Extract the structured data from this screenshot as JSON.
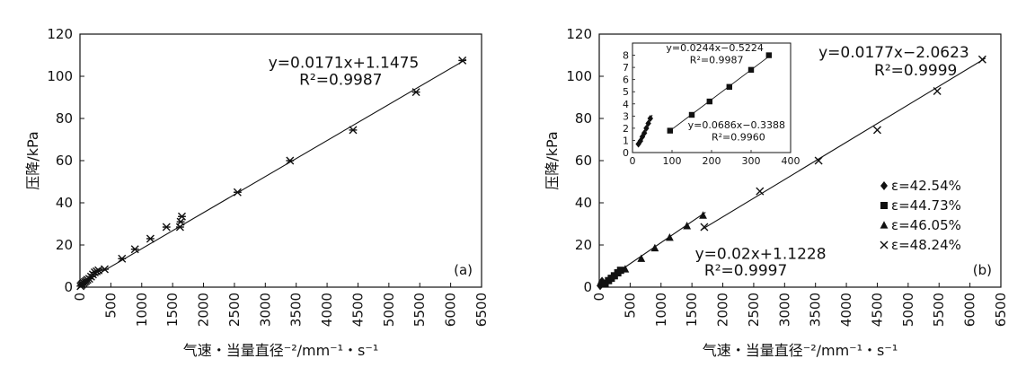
{
  "chart_data": [
    {
      "type": "scatter",
      "panel_label": "(a)",
      "xlabel": "气速・当量直径⁻²/mm⁻¹・s⁻¹",
      "ylabel": "压降/kPa",
      "xlim": [
        0,
        6500
      ],
      "ylim": [
        0,
        120
      ],
      "xticks": [
        0,
        500,
        1000,
        1500,
        2000,
        2500,
        3000,
        3500,
        4000,
        4500,
        5000,
        5500,
        6000,
        6500
      ],
      "yticks": [
        0,
        20,
        40,
        60,
        80,
        100,
        120
      ],
      "series": [
        {
          "marker": "asterisk",
          "x": [
            10,
            25,
            40,
            60,
            80,
            100,
            120,
            150,
            180,
            210,
            240,
            270,
            300,
            400,
            680,
            890,
            1140,
            1400,
            1620,
            1630,
            1650,
            2550,
            3400,
            4420,
            5440,
            6190
          ],
          "y": [
            0.5,
            1.0,
            1.5,
            2.0,
            2.5,
            3.0,
            3.5,
            4.0,
            5.0,
            6.0,
            7.0,
            7.5,
            8.0,
            8.5,
            13.5,
            18.0,
            23.0,
            28.5,
            28.5,
            31.0,
            33.5,
            45.0,
            60.0,
            74.5,
            92.5,
            107.5
          ]
        }
      ],
      "fit": {
        "slope": 0.0171,
        "intercept": 1.1475,
        "x_range": [
          0,
          6250
        ]
      },
      "annotations": [
        {
          "text": "y=0.0171x+1.1475",
          "x": 3050,
          "y": 104
        },
        {
          "text": "R²=0.9987",
          "x": 3550,
          "y": 96
        }
      ]
    },
    {
      "type": "scatter",
      "panel_label": "(b)",
      "xlabel": "气速・当量直径⁻²/mm⁻¹・s⁻¹",
      "ylabel": "压降/kPa",
      "xlim": [
        0,
        6500
      ],
      "ylim": [
        0,
        120
      ],
      "xticks": [
        0,
        500,
        1000,
        1500,
        2000,
        2500,
        3000,
        3500,
        4000,
        4500,
        5000,
        5500,
        6000,
        6500
      ],
      "yticks": [
        0,
        20,
        40,
        60,
        80,
        100,
        120
      ],
      "legend_position": "right",
      "series": [
        {
          "name": "ε=42.54%",
          "marker": "diamond",
          "x": [
            15,
            25,
            35,
            45
          ],
          "y": [
            0.7,
            1.3,
            2.0,
            2.8
          ]
        },
        {
          "name": "ε=44.73%",
          "marker": "square",
          "x": [
            95,
            150,
            195,
            245,
            300,
            345
          ],
          "y": [
            1.8,
            3.1,
            4.2,
            5.4,
            6.8,
            8.0
          ]
        },
        {
          "name": "ε=46.05%",
          "marker": "triangle",
          "x": [
            420,
            680,
            900,
            1140,
            1420,
            1680
          ],
          "y": [
            8.5,
            13.5,
            18.5,
            23.5,
            29.0,
            34.0
          ]
        },
        {
          "name": "ε=48.24%",
          "marker": "x",
          "x": [
            1700,
            2600,
            3550,
            4500,
            5470,
            6200
          ],
          "y": [
            28.5,
            45.5,
            60.0,
            74.5,
            93.0,
            108.0
          ]
        }
      ],
      "fits": [
        {
          "slope": 0.02,
          "intercept": 1.1228,
          "x_range": [
            0,
            1720
          ]
        },
        {
          "slope": 0.0177,
          "intercept": -2.0623,
          "x_range": [
            1650,
            6250
          ]
        }
      ],
      "annotations": [
        {
          "text": "y=0.0177x−2.0623",
          "x": 3550,
          "y": 109
        },
        {
          "text": "R²=0.9999",
          "x": 4450,
          "y": 100.5
        },
        {
          "text": "y=0.02x+1.1228",
          "x": 1550,
          "y": 13.5
        },
        {
          "text": "R²=0.9997",
          "x": 1700,
          "y": 5.5
        }
      ],
      "inset": {
        "xlim": [
          0,
          400
        ],
        "ylim": [
          0,
          9
        ],
        "xticks": [
          0,
          100,
          200,
          300,
          400
        ],
        "yticks": [
          0,
          1,
          2,
          3,
          4,
          5,
          6,
          7,
          8
        ],
        "series": [
          {
            "marker": "diamond",
            "x": [
              15,
              20,
              25,
              30,
              35,
              40,
              45
            ],
            "y": [
              0.7,
              0.95,
              1.3,
              1.6,
              2.0,
              2.4,
              2.8
            ]
          },
          {
            "marker": "square",
            "x": [
              95,
              150,
              195,
              245,
              300,
              345
            ],
            "y": [
              1.8,
              3.1,
              4.2,
              5.4,
              6.8,
              8.0
            ]
          }
        ],
        "fits": [
          {
            "slope": 0.0686,
            "intercept": -0.3388,
            "x_range": [
              13,
              50
            ]
          },
          {
            "slope": 0.0244,
            "intercept": -0.5224,
            "x_range": [
              90,
              350
            ]
          }
        ],
        "annotations": [
          {
            "text": "y=0.0244x−0.5224",
            "x": 85,
            "y": 8.35
          },
          {
            "text": "R²=0.9987",
            "x": 145,
            "y": 7.35
          },
          {
            "text": "y=0.0686x−0.3388",
            "x": 140,
            "y": 2.0
          },
          {
            "text": "R²=0.9960",
            "x": 200,
            "y": 1.0
          }
        ]
      }
    }
  ]
}
